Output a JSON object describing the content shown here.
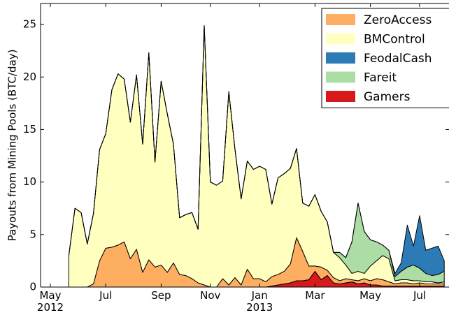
{
  "chart_data": {
    "type": "stacked-area",
    "ylabel": "Payouts from Mining Pools (BTC/day)",
    "categories": [
      "May 2012",
      null,
      null,
      null,
      null,
      null,
      null,
      null,
      null,
      "Jul",
      null,
      null,
      null,
      null,
      null,
      null,
      null,
      null,
      "Sep",
      null,
      null,
      null,
      null,
      null,
      null,
      null,
      "Nov",
      null,
      null,
      null,
      null,
      null,
      null,
      null,
      "Jan 2013",
      null,
      null,
      null,
      null,
      null,
      null,
      null,
      null,
      "Mar",
      null,
      null,
      null,
      null,
      null,
      null,
      null,
      null,
      "May",
      null,
      null,
      null,
      null,
      null,
      null,
      null,
      "Jul",
      null,
      null,
      null,
      null
    ],
    "series": [
      {
        "name": "ZeroAccess",
        "color": "#fdae61",
        "values": [
          null,
          null,
          null,
          0,
          0,
          0,
          0,
          0.3,
          2.5,
          3.7,
          3.8,
          4.0,
          4.3,
          2.7,
          3.6,
          1.4,
          2.6,
          1.9,
          2.1,
          1.4,
          2.3,
          1.2,
          1.1,
          0.8,
          0.4,
          0.2,
          0,
          0,
          0.8,
          0.2,
          0.9,
          0.2,
          1.7,
          0.8,
          0.8,
          0.5,
          0.9,
          1.0,
          1.2,
          1.8,
          4.1,
          2.8,
          1.3,
          0.5,
          1.2,
          0.5,
          0.5,
          0.3,
          0.4,
          0.2,
          0.3,
          0.4,
          0.4,
          0.6,
          0.6,
          0.4,
          0.2,
          0.3,
          0.3,
          0.2,
          0.3,
          0.2,
          0.2,
          0.2,
          0.2
        ]
      },
      {
        "name": "BMControl",
        "color": "#ffffbf",
        "values": [
          null,
          null,
          null,
          3.0,
          7.5,
          7.1,
          4.1,
          6.7,
          10.6,
          10.9,
          15.0,
          16.3,
          15.5,
          13.0,
          16.6,
          12.2,
          19.7,
          10.0,
          17.5,
          15.1,
          11.3,
          5.4,
          5.8,
          6.3,
          5.1,
          24.7,
          10.0,
          9.7,
          9.3,
          18.4,
          12.2,
          8.2,
          10.3,
          10.4,
          10.7,
          10.7,
          6.9,
          9.2,
          9.3,
          9.1,
          8.5,
          4.6,
          5.7,
          6.8,
          5.3,
          4.6,
          2.4,
          2.2,
          1.3,
          0.6,
          0.9,
          0.5,
          1.4,
          1.7,
          2.3,
          2.2,
          0.3,
          0.3,
          0.3,
          0.3,
          0.2,
          0.2,
          0.2,
          0.1,
          0.2
        ]
      },
      {
        "name": "FeodalCash",
        "color": "#2c7bb6",
        "values": [
          null,
          null,
          null,
          0,
          0,
          0,
          0,
          0,
          0,
          0,
          0,
          0,
          0,
          0,
          0,
          0,
          0,
          0,
          0,
          0,
          0,
          0,
          0,
          0,
          0,
          0,
          0,
          0,
          0,
          0,
          0,
          0,
          0,
          0,
          0,
          0,
          0,
          0,
          0,
          0,
          0,
          0,
          0,
          0,
          0,
          0,
          0,
          0,
          0,
          0,
          0,
          0,
          0,
          0,
          0,
          0,
          0.3,
          0.8,
          4.0,
          1.8,
          5.0,
          2.2,
          2.6,
          2.7,
          1.0
        ]
      },
      {
        "name": "Fareit",
        "color": "#abdda4",
        "values": [
          null,
          null,
          null,
          0,
          0,
          0,
          0,
          0,
          0,
          0,
          0,
          0,
          0,
          0,
          0,
          0,
          0,
          0,
          0,
          0,
          0,
          0,
          0,
          0,
          0,
          0,
          0,
          0,
          0,
          0,
          0,
          0,
          0,
          0,
          0,
          0,
          0,
          0,
          0,
          0,
          0,
          0,
          0,
          0,
          0,
          0,
          0,
          0.5,
          0.7,
          3.0,
          6.5,
          4.0,
          2.5,
          1.8,
          1.0,
          0.8,
          0.4,
          0.8,
          1.2,
          1.5,
          1.2,
          0.8,
          0.6,
          0.8,
          1.0
        ]
      },
      {
        "name": "Gamers",
        "color": "#d7191c",
        "values": [
          null,
          null,
          null,
          0,
          0,
          0,
          0,
          0,
          0,
          0,
          0,
          0,
          0,
          0,
          0,
          0,
          0,
          0,
          0,
          0,
          0,
          0,
          0,
          0,
          0,
          0,
          0,
          0,
          0,
          0,
          0,
          0,
          0,
          0,
          0,
          0,
          0.1,
          0.2,
          0.3,
          0.4,
          0.6,
          0.6,
          0.7,
          1.5,
          0.7,
          1.1,
          0.4,
          0.3,
          0.4,
          0.5,
          0.3,
          0.4,
          0.2,
          0.2,
          0.1,
          0.1,
          0.1,
          0.1,
          0.1,
          0.1,
          0.1,
          0.1,
          0.1,
          0.1,
          0.1
        ]
      }
    ],
    "ylim": [
      0,
      27
    ],
    "yticks": [
      0,
      5,
      10,
      15,
      20,
      25
    ],
    "legend": "upper right"
  }
}
